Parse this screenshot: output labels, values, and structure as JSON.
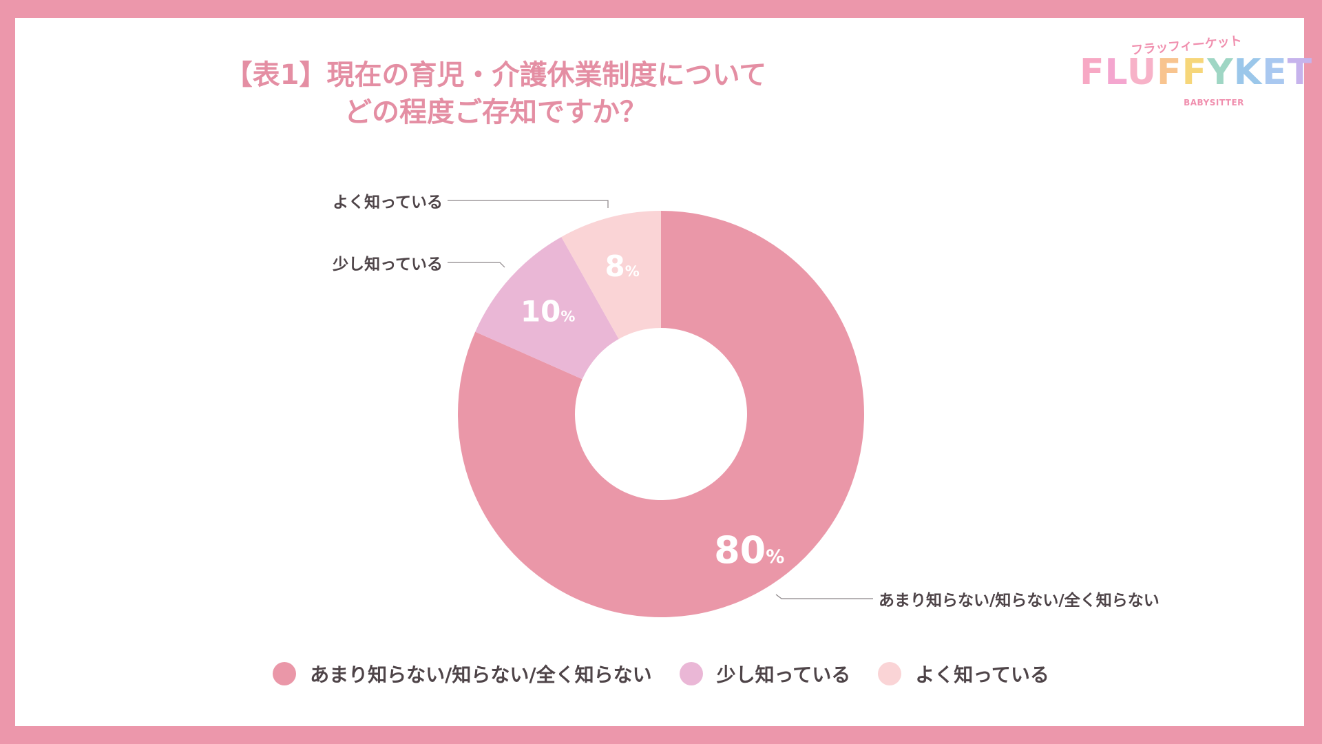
{
  "title": {
    "line1": "【表1】現在の育児・介護休業制度について",
    "line2": "どの程度ご存知ですか？"
  },
  "logo": {
    "kana": "フラッフィーケット",
    "letters": [
      {
        "char": "F",
        "color": "#f7a8c4"
      },
      {
        "char": "L",
        "color": "#f4a6cf"
      },
      {
        "char": "U",
        "color": "#f7b2c8"
      },
      {
        "char": "F",
        "color": "#f8c48f"
      },
      {
        "char": "F",
        "color": "#f6d67a"
      },
      {
        "char": "Y",
        "color": "#9fd6c4"
      },
      {
        "char": "K",
        "color": "#9bc7ea"
      },
      {
        "char": "E",
        "color": "#a9c8f0"
      },
      {
        "char": "T",
        "color": "#c6b3ec"
      }
    ],
    "sub": "BABYSITTER"
  },
  "chart_data": {
    "type": "pie",
    "donut": true,
    "title": "【表1】現在の育児・介護休業制度について どの程度ご存知ですか？",
    "slices": [
      {
        "label": "あまり知らない/知らない/全く知らない",
        "value": 80,
        "value_label": "80",
        "unit": "%",
        "color": "#ea97a8"
      },
      {
        "label": "少し知っている",
        "value": 10,
        "value_label": "10",
        "unit": "%",
        "color": "#eab7d6"
      },
      {
        "label": "よく知っている",
        "value": 8,
        "value_label": "8",
        "unit": "%",
        "color": "#fad4d6"
      }
    ],
    "legend_position": "bottom"
  }
}
